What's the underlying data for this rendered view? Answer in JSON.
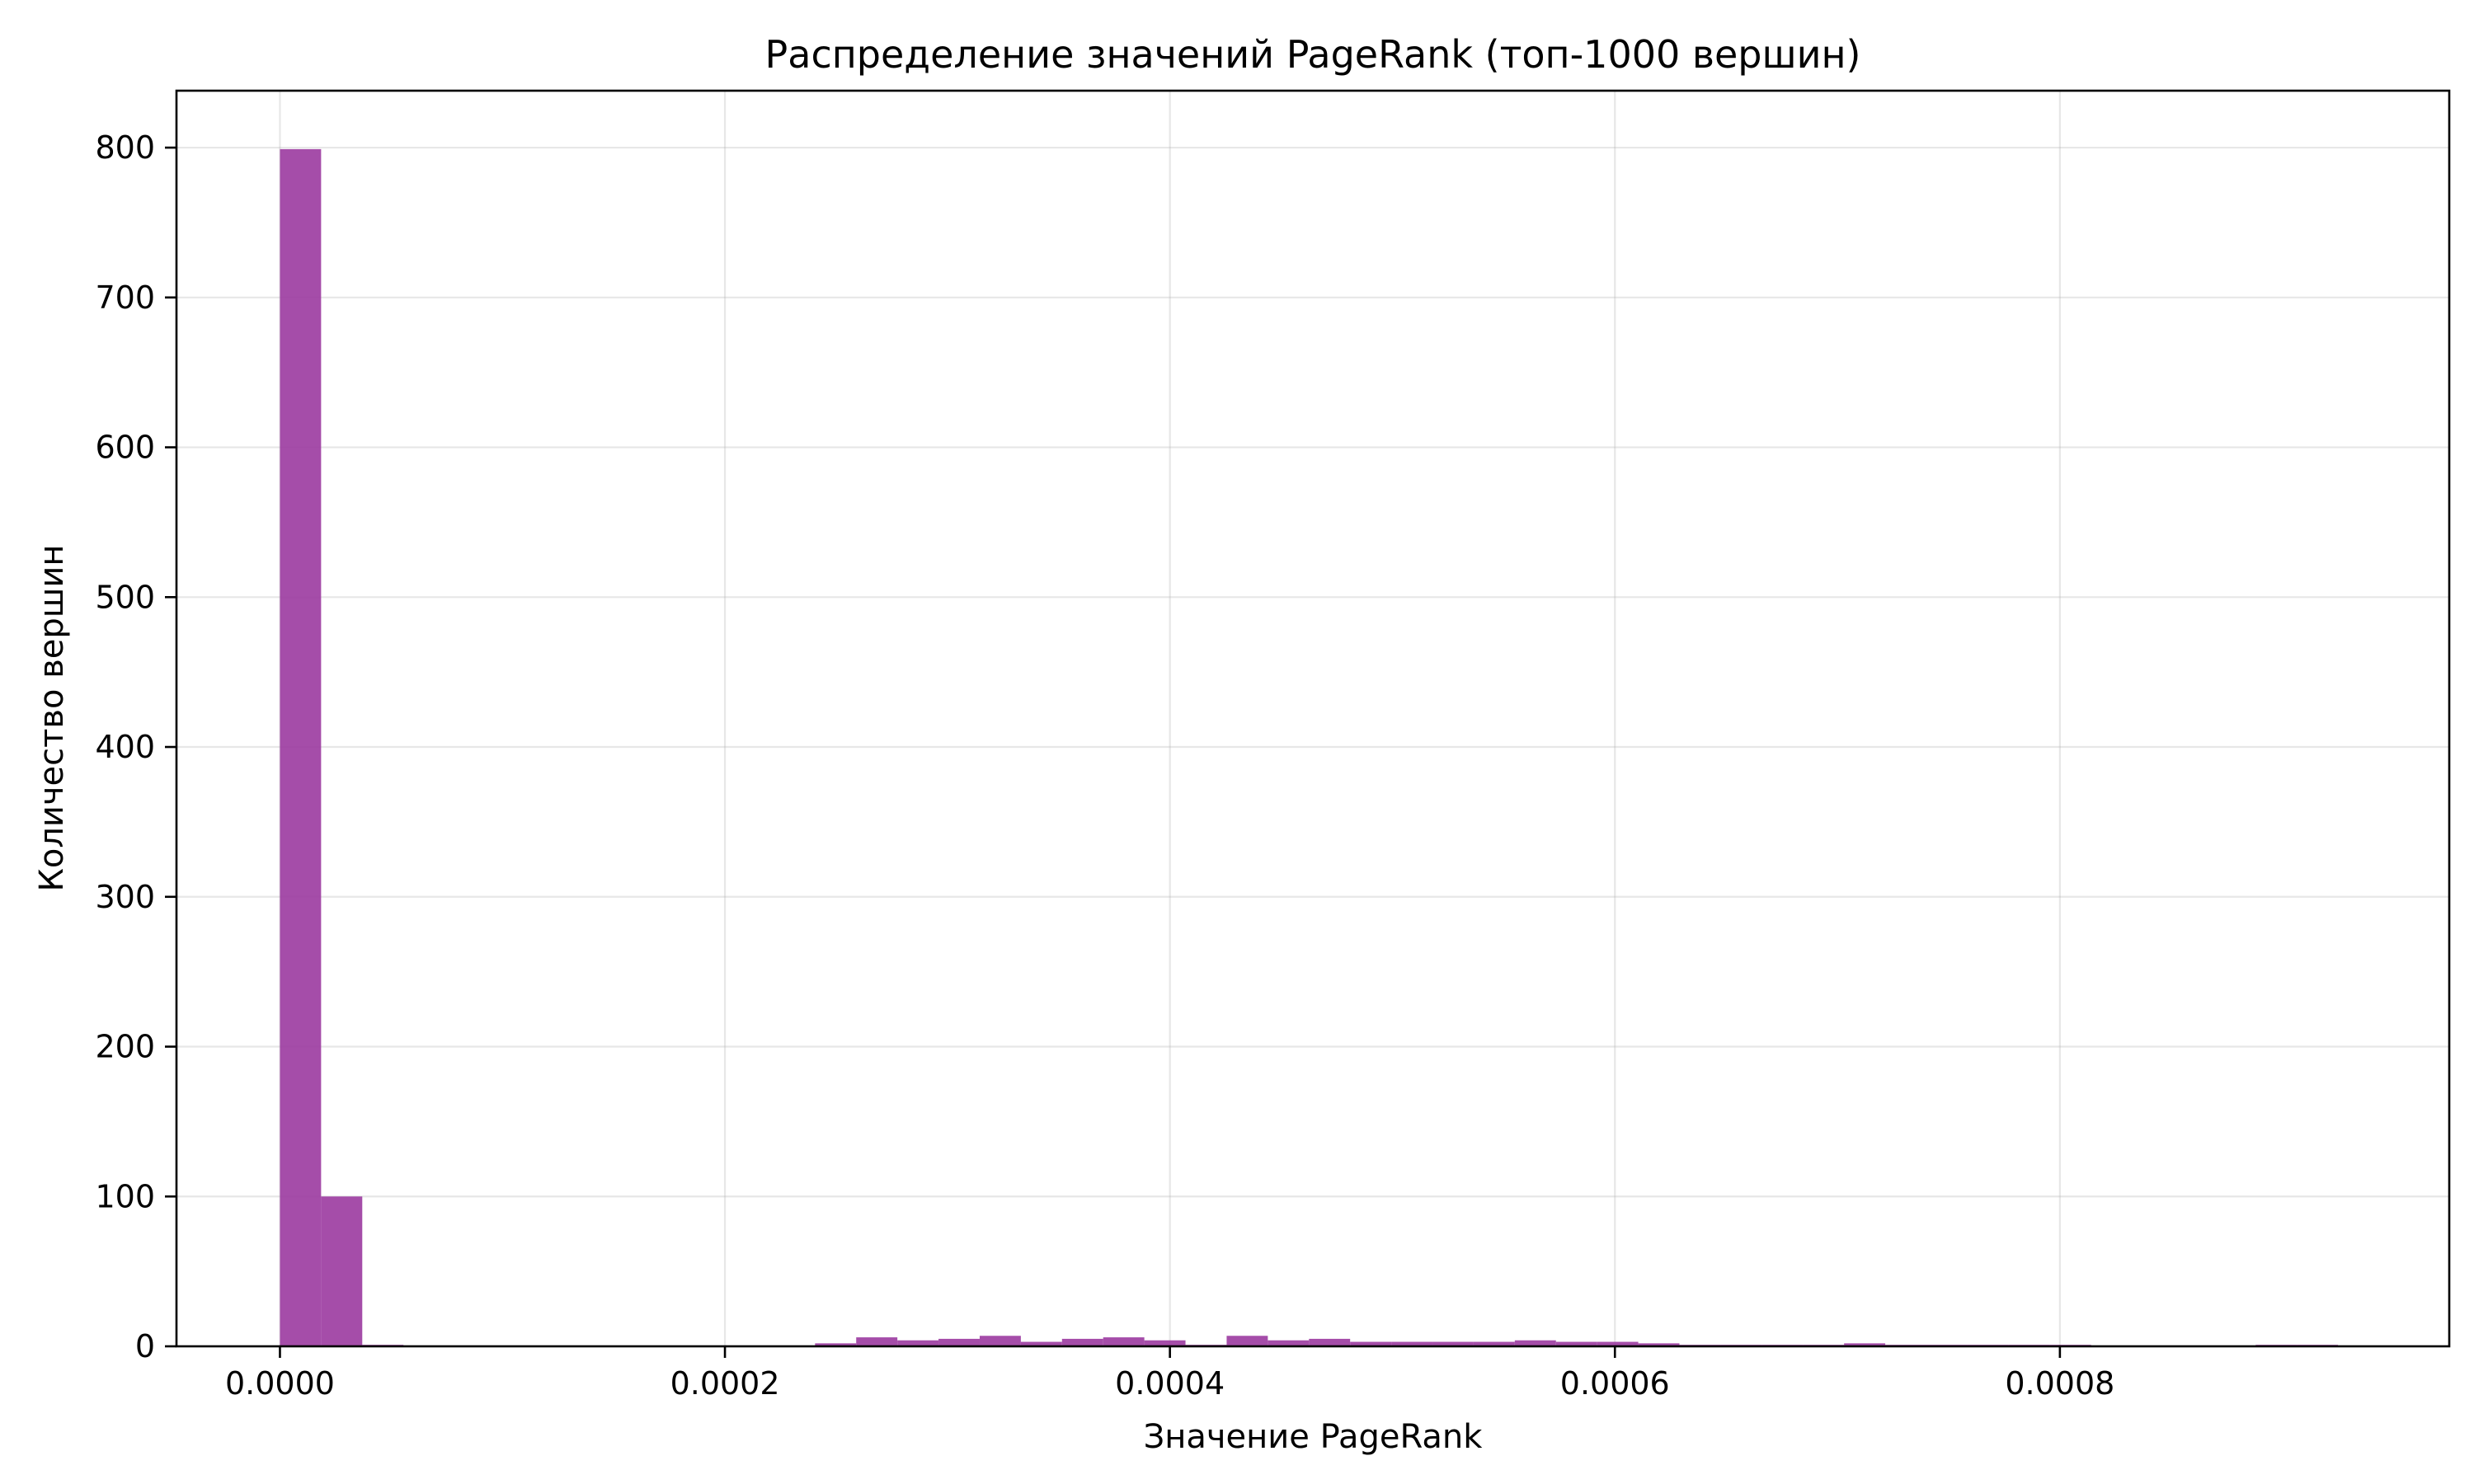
{
  "chart_data": {
    "type": "bar",
    "title": "Распределение значений PageRank (топ-1000 вершин)",
    "xlabel": "Значение PageRank",
    "ylabel": "Количество вершин",
    "xlim": [
      -4.65e-05,
      0.000975
    ],
    "ylim": [
      0,
      838
    ],
    "x_ticks": [
      0,
      0.0002,
      0.0004,
      0.0006,
      0.0008
    ],
    "x_tick_labels": [
      "0.0000",
      "0.0002",
      "0.0004",
      "0.0006",
      "0.0008"
    ],
    "y_ticks": [
      0,
      100,
      200,
      300,
      400,
      500,
      600,
      700,
      800
    ],
    "y_tick_labels": [
      "0",
      "100",
      "200",
      "300",
      "400",
      "500",
      "600",
      "700",
      "800"
    ],
    "grid": true,
    "bar_color": "#9b3aa0",
    "bin_edges": [
      0,
      1.85e-05,
      3.7e-05,
      5.55e-05,
      7.4e-05,
      9.25e-05,
      0.000111,
      0.0001295,
      0.000148,
      0.0001665,
      0.000185,
      0.0002035,
      0.000222,
      0.0002405,
      0.000259,
      0.0002775,
      0.000296,
      0.0003145,
      0.000333,
      0.0003515,
      0.00037,
      0.0003885,
      0.000407,
      0.0004255,
      0.000444,
      0.0004625,
      0.000481,
      0.0004995,
      0.000518,
      0.0005365,
      0.000555,
      0.0005735,
      0.000592,
      0.0006105,
      0.000629,
      0.0006475,
      0.000666,
      0.0006845,
      0.000703,
      0.0007215,
      0.00074,
      0.0007585,
      0.000777,
      0.0007955,
      0.000814,
      0.0008325,
      0.000851,
      0.0008695,
      0.000888,
      0.0009065,
      0.000925
    ],
    "values": [
      799,
      100,
      1,
      0,
      0,
      0,
      0,
      0,
      0,
      0,
      0,
      0,
      0,
      2,
      6,
      4,
      5,
      7,
      3,
      5,
      6,
      4,
      1,
      7,
      4,
      5,
      3,
      3,
      3,
      3,
      4,
      3,
      3,
      2,
      1,
      1,
      1,
      1,
      2,
      1,
      1,
      1,
      1,
      1,
      0,
      0,
      0,
      0,
      1,
      1
    ]
  }
}
